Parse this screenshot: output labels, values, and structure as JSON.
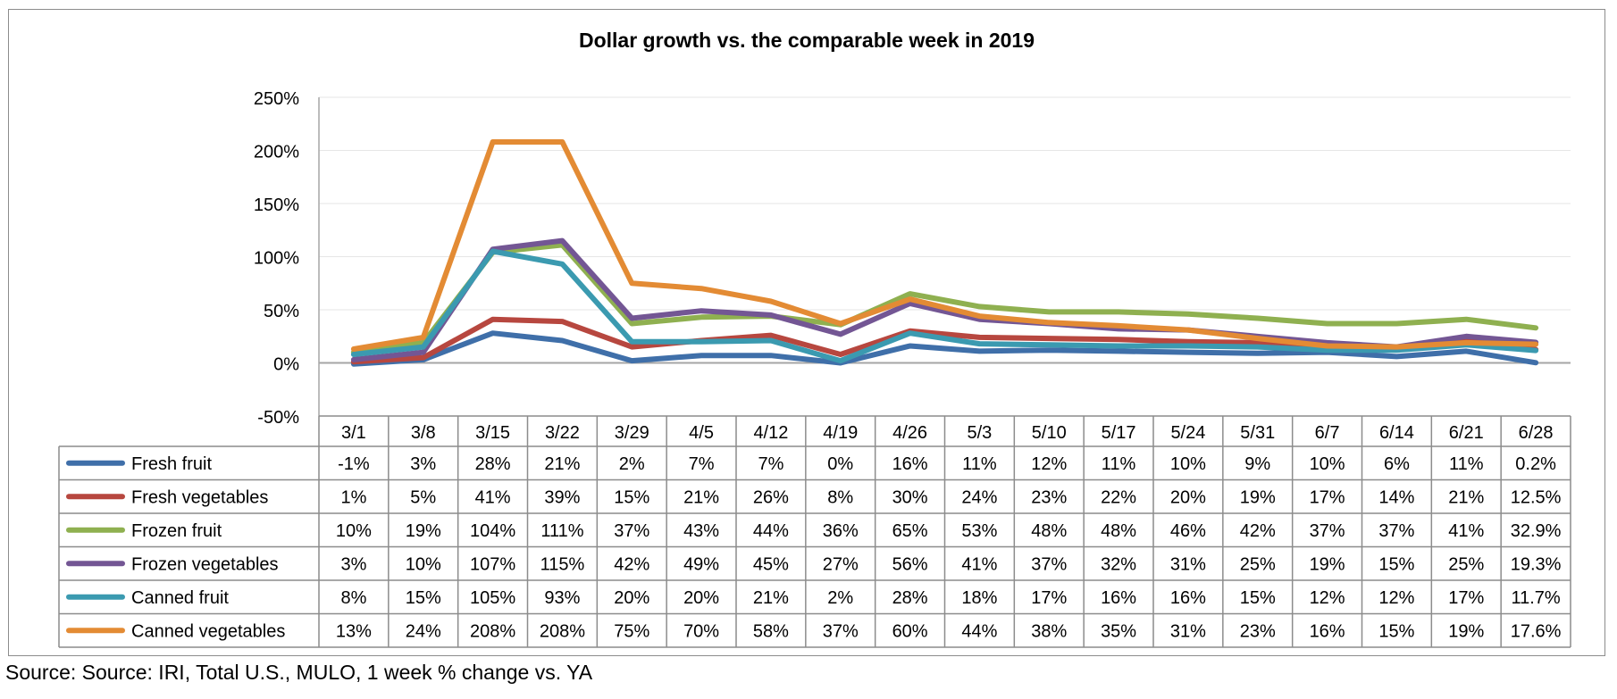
{
  "chart_data": {
    "type": "line",
    "title": "Dollar growth vs. the comparable week in 2019",
    "categories": [
      "3/1",
      "3/8",
      "3/15",
      "3/22",
      "3/29",
      "4/5",
      "4/12",
      "4/19",
      "4/26",
      "5/3",
      "5/10",
      "5/17",
      "5/24",
      "5/31",
      "6/7",
      "6/14",
      "6/21",
      "6/28"
    ],
    "y_ticks": [
      "250%",
      "200%",
      "150%",
      "100%",
      "50%",
      "0%",
      "-50%"
    ],
    "ylim": [
      -50,
      250
    ],
    "y_unit": "%",
    "grid": true,
    "legend": "data-table",
    "series": [
      {
        "name": "Fresh fruit",
        "color": "#3f6fa9",
        "values": [
          -1,
          3,
          28,
          21,
          2,
          7,
          7,
          0,
          16,
          11,
          12,
          11,
          10,
          9,
          10,
          6,
          11,
          0.2
        ],
        "labels": [
          "-1%",
          "3%",
          "28%",
          "21%",
          "2%",
          "7%",
          "7%",
          "0%",
          "16%",
          "11%",
          "12%",
          "11%",
          "10%",
          "9%",
          "10%",
          "6%",
          "11%",
          "0.2%"
        ]
      },
      {
        "name": "Fresh vegetables",
        "color": "#b7473f",
        "values": [
          1,
          5,
          41,
          39,
          15,
          21,
          26,
          8,
          30,
          24,
          23,
          22,
          20,
          19,
          17,
          14,
          21,
          12.5
        ],
        "labels": [
          "1%",
          "5%",
          "41%",
          "39%",
          "15%",
          "21%",
          "26%",
          "8%",
          "30%",
          "24%",
          "23%",
          "22%",
          "20%",
          "19%",
          "17%",
          "14%",
          "21%",
          "12.5%"
        ]
      },
      {
        "name": "Frozen fruit",
        "color": "#8fb050",
        "values": [
          10,
          19,
          104,
          111,
          37,
          43,
          44,
          36,
          65,
          53,
          48,
          48,
          46,
          42,
          37,
          37,
          41,
          32.9
        ],
        "labels": [
          "10%",
          "19%",
          "104%",
          "111%",
          "37%",
          "43%",
          "44%",
          "36%",
          "65%",
          "53%",
          "48%",
          "48%",
          "46%",
          "42%",
          "37%",
          "37%",
          "41%",
          "32.9%"
        ]
      },
      {
        "name": "Frozen vegetables",
        "color": "#735694",
        "values": [
          3,
          10,
          107,
          115,
          42,
          49,
          45,
          27,
          56,
          41,
          37,
          32,
          31,
          25,
          19,
          15,
          25,
          19.3
        ],
        "labels": [
          "3%",
          "10%",
          "107%",
          "115%",
          "42%",
          "49%",
          "45%",
          "27%",
          "56%",
          "41%",
          "37%",
          "32%",
          "31%",
          "25%",
          "19%",
          "15%",
          "25%",
          "19.3%"
        ]
      },
      {
        "name": "Canned fruit",
        "color": "#3b9ab0",
        "values": [
          8,
          15,
          105,
          93,
          20,
          20,
          21,
          2,
          28,
          18,
          17,
          16,
          16,
          15,
          12,
          12,
          17,
          11.7
        ],
        "labels": [
          "8%",
          "15%",
          "105%",
          "93%",
          "20%",
          "20%",
          "21%",
          "2%",
          "28%",
          "18%",
          "17%",
          "16%",
          "16%",
          "15%",
          "12%",
          "12%",
          "17%",
          "11.7%"
        ]
      },
      {
        "name": "Canned vegetables",
        "color": "#e38b34",
        "values": [
          13,
          24,
          208,
          208,
          75,
          70,
          58,
          37,
          60,
          44,
          38,
          35,
          31,
          23,
          16,
          15,
          19,
          17.6
        ],
        "labels": [
          "13%",
          "24%",
          "208%",
          "208%",
          "75%",
          "70%",
          "58%",
          "37%",
          "60%",
          "44%",
          "38%",
          "35%",
          "31%",
          "23%",
          "16%",
          "15%",
          "19%",
          "17.6%"
        ]
      }
    ]
  },
  "source_note": "Source: Source: IRI, Total U.S., MULO, 1 week % change vs. YA"
}
